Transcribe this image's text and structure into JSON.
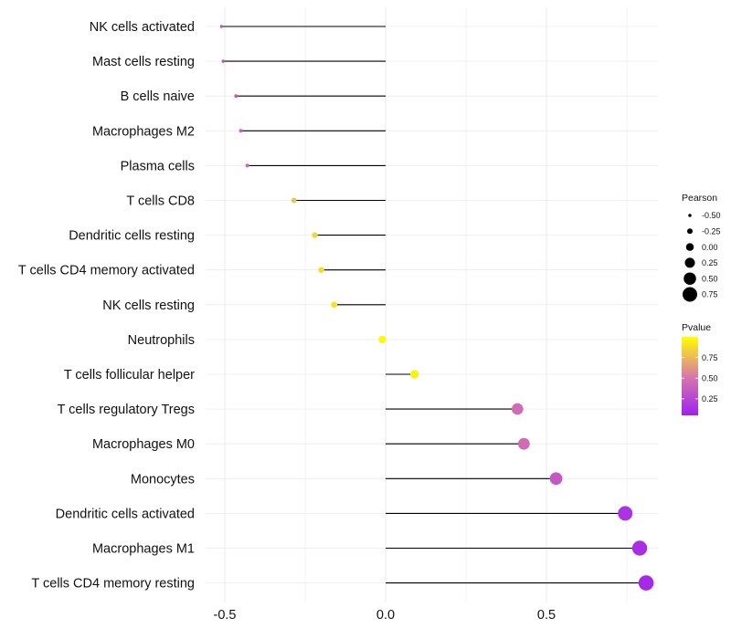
{
  "chart_data": {
    "type": "lollipop",
    "title": "",
    "xlabel": "",
    "ylabel": "",
    "xlim": [
      -0.55,
      0.85
    ],
    "x_ticks": [
      -0.5,
      0.0,
      0.5
    ],
    "x_tick_labels": [
      "-0.5",
      "0.0",
      "0.5"
    ],
    "grid": true,
    "categories": [
      "NK cells activated",
      "Mast cells resting",
      "B cells naive",
      "Macrophages M2",
      "Plasma cells",
      "T cells CD8",
      "Dendritic cells resting",
      "T cells CD4 memory activated",
      "NK cells resting",
      "Neutrophils",
      "T cells follicular helper",
      "T cells regulatory  Tregs",
      "Macrophages M0",
      "Monocytes",
      "Dendritic cells activated",
      "Macrophages M1",
      "T cells CD4 memory resting"
    ],
    "pearson": [
      -0.51,
      -0.505,
      -0.465,
      -0.45,
      -0.43,
      -0.285,
      -0.22,
      -0.2,
      -0.16,
      -0.01,
      0.09,
      0.41,
      0.43,
      0.53,
      0.745,
      0.79,
      0.81
    ],
    "pvalue": [
      0.3,
      0.3,
      0.35,
      0.4,
      0.45,
      0.78,
      0.85,
      0.87,
      0.9,
      0.98,
      0.95,
      0.45,
      0.45,
      0.35,
      0.15,
      0.12,
      0.1
    ],
    "size_legend": {
      "title": "Pearson",
      "values": [
        -0.5,
        -0.25,
        0.0,
        0.25,
        0.5,
        0.75
      ],
      "labels": [
        "-0.50",
        "-0.25",
        "0.00",
        "0.25",
        "0.50",
        "0.75"
      ]
    },
    "color_legend": {
      "title": "Pvalue",
      "range": [
        0.05,
        1.0
      ],
      "ticks": [
        0.25,
        0.5,
        0.75
      ],
      "tick_labels": [
        "0.25",
        "0.50",
        "0.75"
      ],
      "low_color": "#a020f0",
      "mid_color": "#d87aa8",
      "high_color": "#ffff00"
    },
    "colors": {
      "segment": "#000000",
      "grid": "#ebebeb"
    }
  }
}
